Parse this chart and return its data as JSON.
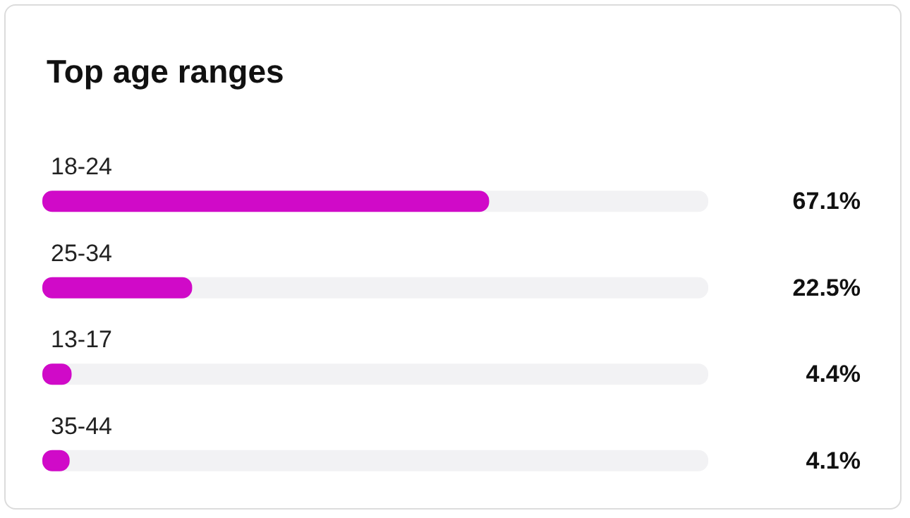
{
  "chart_data": {
    "type": "bar",
    "orientation": "horizontal",
    "title": "Top age ranges",
    "categories": [
      "18-24",
      "25-34",
      "13-17",
      "35-44"
    ],
    "values": [
      67.1,
      22.5,
      4.4,
      4.1
    ],
    "value_labels": [
      "67.1%",
      "22.5%",
      "4.4%",
      "4.1%"
    ],
    "color": "#d00ac8",
    "xlim": [
      0,
      100
    ],
    "tick_labels": "y"
  }
}
